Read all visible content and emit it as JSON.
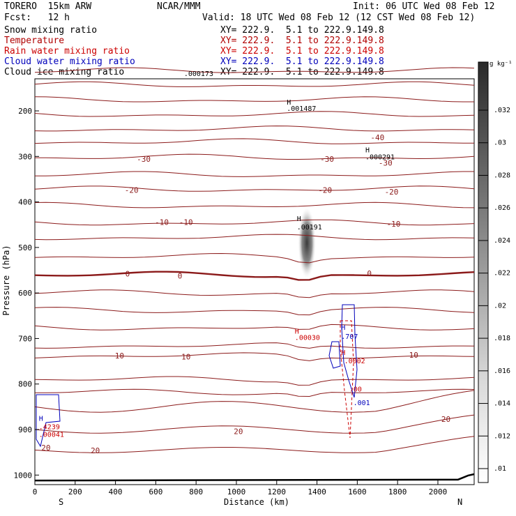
{
  "header": {
    "model": "TORERO  15km ARW",
    "org": "NCAR/MMM",
    "init": "Init: 06 UTC Wed 08 Feb 12",
    "fcst": "Fcst:   12 h",
    "valid": "Valid: 18 UTC Wed 08 Feb 12 (12 CST Wed 08 Feb 12)"
  },
  "legend": [
    {
      "label": "Snow mixing ratio",
      "xy": "",
      "color": "#000000"
    },
    {
      "label": "Temperature",
      "xy": "XY= 222.9.  5.1 to 222.9.149.8",
      "color": "#b00000"
    },
    {
      "label": "Rain water mixing ratio",
      "xy": "XY= 222.9.  5.1 to 222.9.149.8",
      "color": "#cc0000"
    },
    {
      "label": "Cloud water mixing ratio",
      "xy": "XY= 222.9.  5.1 to 222.9.149.8",
      "color": "#0000bb"
    },
    {
      "label": "Cloud ice mixing ratio",
      "xy": "XY= 222.9.  5.1 to 222.9.149.8",
      "color": "#000000"
    }
  ],
  "snow_xy": "XY= 222.9.  5.1 to 222.9.149.8",
  "chart_data": {
    "type": "contour cross-section",
    "title": "Snow mixing ratio / Temperature / Rain, Cloud water, Cloud ice mixing ratio",
    "xlabel": "Distance (km)",
    "ylabel": "Pressure (hPa)",
    "xlim": [
      0,
      2180
    ],
    "ylim": [
      1020,
      100
    ],
    "x_ticks": [
      0,
      200,
      400,
      600,
      800,
      1000,
      1200,
      1400,
      1600,
      1800,
      2000
    ],
    "y_ticks": [
      200,
      300,
      400,
      500,
      600,
      700,
      800,
      900,
      1000
    ],
    "left_end": "S",
    "right_end": "N",
    "colorbar": {
      "unit": "g kg⁻¹",
      "ticks": [
        ".01",
        ".012",
        ".014",
        ".016",
        ".018",
        ".02",
        ".022",
        ".024",
        ".026",
        ".028",
        ".03",
        ".032"
      ]
    },
    "temperature_labels": [
      {
        "text": "-40",
        "x": 1700,
        "p": 258
      },
      {
        "text": "-30",
        "x": 540,
        "p": 306
      },
      {
        "text": "-30",
        "x": 1450,
        "p": 306
      },
      {
        "text": "-30",
        "x": 1740,
        "p": 314
      },
      {
        "text": "-20",
        "x": 480,
        "p": 374
      },
      {
        "text": "-20",
        "x": 1440,
        "p": 374
      },
      {
        "text": "-20",
        "x": 1770,
        "p": 378
      },
      {
        "text": "-10",
        "x": 630,
        "p": 444
      },
      {
        "text": "-10",
        "x": 750,
        "p": 444
      },
      {
        "text": "-10",
        "x": 1780,
        "p": 448
      },
      {
        "text": "0",
        "x": 460,
        "p": 558
      },
      {
        "text": "0",
        "x": 720,
        "p": 562
      },
      {
        "text": "0",
        "x": 1660,
        "p": 557
      },
      {
        "text": "10",
        "x": 420,
        "p": 738
      },
      {
        "text": "10",
        "x": 750,
        "p": 740
      },
      {
        "text": "10",
        "x": 1880,
        "p": 736
      },
      {
        "text": "20",
        "x": 300,
        "p": 946
      },
      {
        "text": "20",
        "x": 1010,
        "p": 904
      },
      {
        "text": "20",
        "x": 2040,
        "p": 877
      },
      {
        "text": "20",
        "x": 55,
        "p": 940
      }
    ],
    "extrema_labels": [
      {
        "text": "H",
        "x": 1250,
        "p": 180,
        "color": "#000000"
      },
      {
        "text": ".001487",
        "x": 1250,
        "p": 194,
        "color": "#000000"
      },
      {
        "text": "H",
        "x": 1640,
        "p": 285,
        "color": "#000000"
      },
      {
        "text": ".000291",
        "x": 1640,
        "p": 300,
        "color": "#000000"
      },
      {
        "text": ".000173",
        "x": 740,
        "p": 117,
        "color": "#000000"
      },
      {
        "text": "H",
        "x": 1300,
        "p": 436,
        "color": "#000000"
      },
      {
        "text": ".00191",
        "x": 1300,
        "p": 454,
        "color": "#000000"
      },
      {
        "text": "H",
        "x": 1290,
        "p": 683,
        "color": "#cc0000"
      },
      {
        "text": ".00030",
        "x": 1290,
        "p": 697,
        "color": "#cc0000"
      },
      {
        "text": "H",
        "x": 1520,
        "p": 675,
        "color": "#0000bb"
      },
      {
        "text": ".707",
        "x": 1520,
        "p": 695,
        "color": "#0000bb"
      },
      {
        "text": "H",
        "x": 1520,
        "p": 730,
        "color": "#cc0000"
      },
      {
        "text": ".0002",
        "x": 1535,
        "p": 748,
        "color": "#cc0000"
      },
      {
        "text": ".001",
        "x": 1580,
        "p": 840,
        "color": "#0000bb"
      },
      {
        "text": ".00",
        "x": 1560,
        "p": 810,
        "color": "#cc0000"
      },
      {
        "text": "H",
        "x": 20,
        "p": 875,
        "color": "#0000bb"
      },
      {
        "text": ".4239",
        "x": 20,
        "p": 893,
        "color": "#cc0000"
      },
      {
        "text": ".00041",
        "x": 20,
        "p": 910,
        "color": "#cc0000"
      }
    ]
  }
}
